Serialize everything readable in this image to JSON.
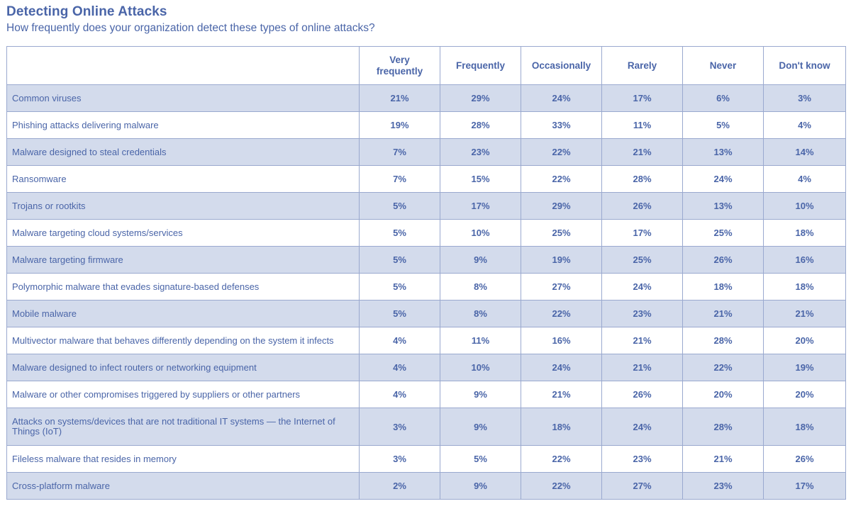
{
  "title": "Detecting Online Attacks",
  "subtitle": "How frequently does your organization detect these types of online attacks?",
  "colors": {
    "text": "#4a65a8",
    "shaded_row": "#d3dbec",
    "border": "#9aa9cf"
  },
  "chart_data": {
    "type": "table",
    "title": "Detecting Online Attacks",
    "subtitle": "How frequently does your organization detect these types of online attacks?",
    "columns": [
      "Very frequently",
      "Frequently",
      "Occasionally",
      "Rarely",
      "Never",
      "Don't know"
    ],
    "header_lines": [
      [
        "Very",
        "frequently"
      ],
      [
        "Frequently"
      ],
      [
        "Occasionally"
      ],
      [
        "Rarely"
      ],
      [
        "Never"
      ],
      [
        "Don't know"
      ]
    ],
    "rows": [
      {
        "label": "Common viruses",
        "values": [
          "21%",
          "29%",
          "24%",
          "17%",
          "6%",
          "3%"
        ]
      },
      {
        "label": "Phishing attacks delivering malware",
        "values": [
          "19%",
          "28%",
          "33%",
          "11%",
          "5%",
          "4%"
        ]
      },
      {
        "label": "Malware designed to steal credentials",
        "values": [
          "7%",
          "23%",
          "22%",
          "21%",
          "13%",
          "14%"
        ]
      },
      {
        "label": "Ransomware",
        "values": [
          "7%",
          "15%",
          "22%",
          "28%",
          "24%",
          "4%"
        ]
      },
      {
        "label": "Trojans or rootkits",
        "values": [
          "5%",
          "17%",
          "29%",
          "26%",
          "13%",
          "10%"
        ]
      },
      {
        "label": "Malware targeting cloud systems/services",
        "values": [
          "5%",
          "10%",
          "25%",
          "17%",
          "25%",
          "18%"
        ]
      },
      {
        "label": "Malware targeting firmware",
        "values": [
          "5%",
          "9%",
          "19%",
          "25%",
          "26%",
          "16%"
        ]
      },
      {
        "label": "Polymorphic malware that evades signature-based defenses",
        "values": [
          "5%",
          "8%",
          "27%",
          "24%",
          "18%",
          "18%"
        ]
      },
      {
        "label": "Mobile malware",
        "values": [
          "5%",
          "8%",
          "22%",
          "23%",
          "21%",
          "21%"
        ]
      },
      {
        "label": "Multivector malware that behaves differently depending on the system it infects",
        "values": [
          "4%",
          "11%",
          "16%",
          "21%",
          "28%",
          "20%"
        ]
      },
      {
        "label": "Malware designed to infect routers or networking equipment",
        "values": [
          "4%",
          "10%",
          "24%",
          "21%",
          "22%",
          "19%"
        ]
      },
      {
        "label": "Malware or other compromises triggered by suppliers or other partners",
        "values": [
          "4%",
          "9%",
          "21%",
          "26%",
          "20%",
          "20%"
        ]
      },
      {
        "label": "Attacks on systems/devices that are not traditional IT systems — the Internet of Things (IoT)",
        "values": [
          "3%",
          "9%",
          "18%",
          "24%",
          "28%",
          "18%"
        ]
      },
      {
        "label": "Fileless malware that resides in memory",
        "values": [
          "3%",
          "5%",
          "22%",
          "23%",
          "21%",
          "26%"
        ]
      },
      {
        "label": "Cross-platform malware",
        "values": [
          "2%",
          "9%",
          "22%",
          "27%",
          "23%",
          "17%"
        ]
      }
    ]
  }
}
